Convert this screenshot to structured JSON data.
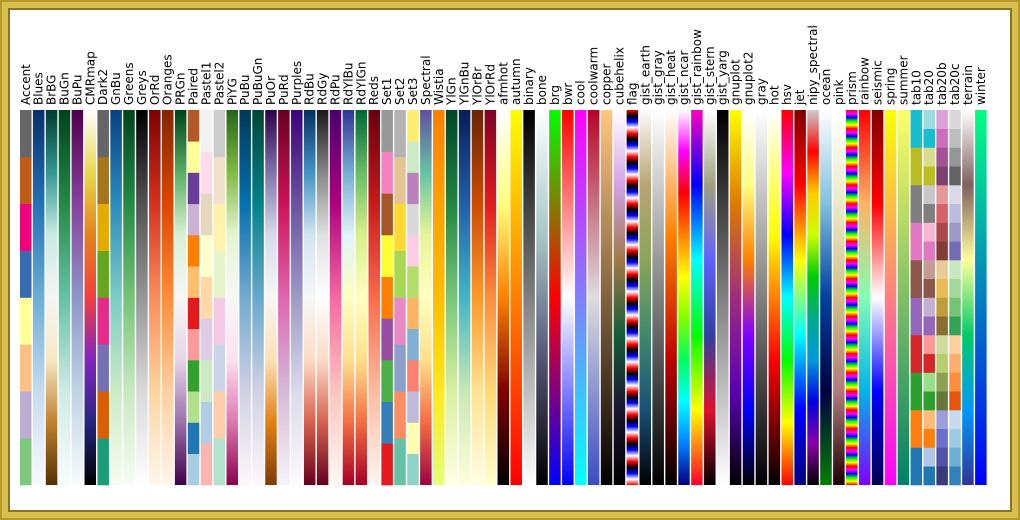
{
  "colormaps": [
    {
      "name": "Accent",
      "discrete": true,
      "colors": [
        "#7fc97f",
        "#beaed4",
        "#fdc086",
        "#ffff99",
        "#386cb0",
        "#f0027f",
        "#bf5b17",
        "#666666"
      ]
    },
    {
      "name": "Blues",
      "colors": [
        "#f7fbff",
        "#c6dbef",
        "#6baed6",
        "#2171b5",
        "#08306b"
      ]
    },
    {
      "name": "BrBG",
      "colors": [
        "#543005",
        "#bf812d",
        "#f6e8c3",
        "#f5f5f5",
        "#c7eae5",
        "#35978f",
        "#003c30"
      ]
    },
    {
      "name": "BuGn",
      "colors": [
        "#f7fcfd",
        "#ccece6",
        "#66c2a4",
        "#238b45",
        "#00441b"
      ]
    },
    {
      "name": "BuPu",
      "colors": [
        "#f7fcfd",
        "#bfd3e6",
        "#8c96c6",
        "#88419d",
        "#4d004b"
      ]
    },
    {
      "name": "CMRmap",
      "colors": [
        "#000000",
        "#262680",
        "#7f26bf",
        "#f23f40",
        "#e6801a",
        "#e6d94d",
        "#ffffff"
      ]
    },
    {
      "name": "Dark2",
      "discrete": true,
      "colors": [
        "#1b9e77",
        "#d95f02",
        "#7570b3",
        "#e7298a",
        "#66a61e",
        "#e6ab02",
        "#a6761d",
        "#666666"
      ]
    },
    {
      "name": "GnBu",
      "colors": [
        "#f7fcf0",
        "#ccebc5",
        "#7bccc4",
        "#2b8cbe",
        "#084081"
      ]
    },
    {
      "name": "Greens",
      "colors": [
        "#f7fcf5",
        "#c7e9c0",
        "#74c476",
        "#238b45",
        "#00441b"
      ]
    },
    {
      "name": "Greys",
      "colors": [
        "#ffffff",
        "#d9d9d9",
        "#969696",
        "#525252",
        "#000000"
      ]
    },
    {
      "name": "OrRd",
      "colors": [
        "#fff7ec",
        "#fdd49e",
        "#fc8d59",
        "#d7301f",
        "#7f0000"
      ]
    },
    {
      "name": "Oranges",
      "colors": [
        "#fff5eb",
        "#fdd0a2",
        "#fd8d3c",
        "#d94801",
        "#7f2704"
      ]
    },
    {
      "name": "PRGn",
      "colors": [
        "#40004b",
        "#9970ab",
        "#e7d4e8",
        "#f7f7f7",
        "#d9f0d3",
        "#5aae61",
        "#00441b"
      ]
    },
    {
      "name": "Paired",
      "discrete": true,
      "colors": [
        "#a6cee3",
        "#1f78b4",
        "#b2df8a",
        "#33a02c",
        "#fb9a99",
        "#e31a1c",
        "#fdbf6f",
        "#ff7f00",
        "#cab2d6",
        "#6a3d9a",
        "#ffff99",
        "#b15928"
      ]
    },
    {
      "name": "Pastel1",
      "discrete": true,
      "colors": [
        "#fbb4ae",
        "#b3cde3",
        "#ccebc5",
        "#decbe4",
        "#fed9a6",
        "#ffffcc",
        "#e5d8bd",
        "#fddaec",
        "#f2f2f2"
      ]
    },
    {
      "name": "Pastel2",
      "discrete": true,
      "colors": [
        "#b3e2cd",
        "#fdcdac",
        "#cbd5e8",
        "#f4cae4",
        "#e6f5c9",
        "#fff2ae",
        "#f1e2cc",
        "#cccccc"
      ]
    },
    {
      "name": "PiYG",
      "colors": [
        "#8e0152",
        "#de77ae",
        "#fde0ef",
        "#f7f7f7",
        "#e6f5d0",
        "#7fbc41",
        "#276419"
      ]
    },
    {
      "name": "PuBu",
      "colors": [
        "#fff7fb",
        "#d0d1e6",
        "#74a9cf",
        "#0570b0",
        "#023858"
      ]
    },
    {
      "name": "PuBuGn",
      "colors": [
        "#fff7fb",
        "#d0d1e6",
        "#67a9cf",
        "#02818a",
        "#014636"
      ]
    },
    {
      "name": "PuOr",
      "colors": [
        "#7f3b08",
        "#e08214",
        "#fee0b6",
        "#f7f7f7",
        "#d8daeb",
        "#8073ac",
        "#2d004b"
      ]
    },
    {
      "name": "PuRd",
      "colors": [
        "#f7f4f9",
        "#d4b9da",
        "#df65b0",
        "#ce1256",
        "#67001f"
      ]
    },
    {
      "name": "Purples",
      "colors": [
        "#fcfbfd",
        "#dadaeb",
        "#9e9ac8",
        "#6a51a3",
        "#3f007d"
      ]
    },
    {
      "name": "RdBu",
      "colors": [
        "#67001f",
        "#d6604d",
        "#fddbc7",
        "#f7f7f7",
        "#d1e5f0",
        "#4393c3",
        "#053061"
      ]
    },
    {
      "name": "RdGy",
      "colors": [
        "#67001f",
        "#d6604d",
        "#fddbc7",
        "#ffffff",
        "#e0e0e0",
        "#878787",
        "#1a1a1a"
      ]
    },
    {
      "name": "RdPu",
      "colors": [
        "#fff7f3",
        "#fcc5c0",
        "#f768a1",
        "#ae017e",
        "#49006a"
      ]
    },
    {
      "name": "RdYlBu",
      "colors": [
        "#a50026",
        "#f46d43",
        "#fee090",
        "#ffffbf",
        "#e0f3f8",
        "#74add1",
        "#313695"
      ]
    },
    {
      "name": "RdYlGn",
      "colors": [
        "#a50026",
        "#f46d43",
        "#fee08b",
        "#ffffbf",
        "#d9ef8b",
        "#66bd63",
        "#006837"
      ]
    },
    {
      "name": "Reds",
      "colors": [
        "#fff5f0",
        "#fcbba1",
        "#fb6a4a",
        "#cb181d",
        "#67000d"
      ]
    },
    {
      "name": "Set1",
      "discrete": true,
      "colors": [
        "#e41a1c",
        "#377eb8",
        "#4daf4a",
        "#984ea3",
        "#ff7f00",
        "#ffff33",
        "#a65628",
        "#f781bf",
        "#999999"
      ]
    },
    {
      "name": "Set2",
      "discrete": true,
      "colors": [
        "#66c2a5",
        "#fc8d62",
        "#8da0cb",
        "#e78ac3",
        "#a6d854",
        "#ffd92f",
        "#e5c494",
        "#b3b3b3"
      ]
    },
    {
      "name": "Set3",
      "discrete": true,
      "colors": [
        "#8dd3c7",
        "#ffffb3",
        "#bebada",
        "#fb8072",
        "#80b1d3",
        "#fdb462",
        "#b3de69",
        "#fccde5",
        "#d9d9d9",
        "#bc80bd",
        "#ccebc5",
        "#ffed6f"
      ]
    },
    {
      "name": "Spectral",
      "colors": [
        "#9e0142",
        "#f46d43",
        "#fee08b",
        "#ffffbf",
        "#e6f598",
        "#66c2a5",
        "#5e4fa2"
      ]
    },
    {
      "name": "Wistia",
      "colors": [
        "#e4ff7a",
        "#ffe81a",
        "#ffbd00",
        "#ffa000",
        "#fc7f00"
      ]
    },
    {
      "name": "YlGn",
      "colors": [
        "#ffffe5",
        "#d9f0a3",
        "#78c679",
        "#238443",
        "#004529"
      ]
    },
    {
      "name": "YlGnBu",
      "colors": [
        "#ffffd9",
        "#c7e9b4",
        "#41b6c4",
        "#225ea8",
        "#081d58"
      ]
    },
    {
      "name": "YlOrBr",
      "colors": [
        "#ffffe5",
        "#fee391",
        "#fe9929",
        "#cc4c02",
        "#662506"
      ]
    },
    {
      "name": "YlOrRd",
      "colors": [
        "#ffffcc",
        "#fed976",
        "#fd8d3c",
        "#e31a1c",
        "#800026"
      ]
    },
    {
      "name": "afmhot",
      "colors": [
        "#000000",
        "#800000",
        "#ff8000",
        "#ffff80",
        "#ffffff"
      ]
    },
    {
      "name": "autumn",
      "colors": [
        "#ff0000",
        "#ffff00"
      ]
    },
    {
      "name": "binary",
      "colors": [
        "#ffffff",
        "#000000"
      ]
    },
    {
      "name": "bone",
      "colors": [
        "#000000",
        "#545474",
        "#a7c7c7",
        "#ffffff"
      ]
    },
    {
      "name": "brg",
      "colors": [
        "#0000ff",
        "#ff0000",
        "#00ff00"
      ]
    },
    {
      "name": "bwr",
      "colors": [
        "#0000ff",
        "#ffffff",
        "#ff0000"
      ]
    },
    {
      "name": "cool",
      "colors": [
        "#00ffff",
        "#ff00ff"
      ]
    },
    {
      "name": "coolwarm",
      "colors": [
        "#3b4cc0",
        "#dddddd",
        "#b40426"
      ]
    },
    {
      "name": "copper",
      "colors": [
        "#000000",
        "#ffc77f"
      ]
    },
    {
      "name": "cubehelix",
      "colors": [
        "#000000",
        "#1a1530",
        "#155d3a",
        "#a07949",
        "#d0a3e4",
        "#ffffff"
      ]
    },
    {
      "name": "flag",
      "repeat": 16,
      "colors": [
        "#ff0000",
        "#ffffff",
        "#0000ff",
        "#000000",
        "#ff0000"
      ]
    },
    {
      "name": "gist_earth",
      "colors": [
        "#000000",
        "#1a5078",
        "#3e8a6a",
        "#8aa55a",
        "#b9a473",
        "#fdfbfb"
      ]
    },
    {
      "name": "gist_gray",
      "colors": [
        "#000000",
        "#ffffff"
      ]
    },
    {
      "name": "gist_heat",
      "colors": [
        "#000000",
        "#c00000",
        "#ff8000",
        "#ffffff"
      ]
    },
    {
      "name": "gist_ncar",
      "colors": [
        "#000080",
        "#0080ff",
        "#00ffff",
        "#00ff60",
        "#80ff00",
        "#ffff00",
        "#ff8000",
        "#ff0000",
        "#ff00ff",
        "#ffffff"
      ]
    },
    {
      "name": "gist_rainbow",
      "colors": [
        "#ff0028",
        "#ffff00",
        "#00ff00",
        "#00ffff",
        "#0000ff",
        "#ff00bf"
      ]
    },
    {
      "name": "gist_stern",
      "colors": [
        "#000000",
        "#e01030",
        "#3040a0",
        "#6060ff",
        "#a0a080",
        "#ffffff"
      ]
    },
    {
      "name": "gist_yarg",
      "colors": [
        "#ffffff",
        "#000000"
      ]
    },
    {
      "name": "gnuplot",
      "colors": [
        "#000000",
        "#5a00b4",
        "#9f2d7d",
        "#dd7a00",
        "#ffff00"
      ]
    },
    {
      "name": "gnuplot2",
      "colors": [
        "#000000",
        "#0000ff",
        "#8000ff",
        "#ff8000",
        "#ffff80",
        "#ffffff"
      ]
    },
    {
      "name": "gray",
      "colors": [
        "#000000",
        "#ffffff"
      ]
    },
    {
      "name": "hot",
      "colors": [
        "#000000",
        "#ff0000",
        "#ffff00",
        "#ffffff"
      ]
    },
    {
      "name": "hsv",
      "colors": [
        "#ff0000",
        "#ffff00",
        "#00ff00",
        "#00ffff",
        "#0000ff",
        "#ff00ff",
        "#ff0000"
      ]
    },
    {
      "name": "jet",
      "colors": [
        "#000080",
        "#0000ff",
        "#00ffff",
        "#ffff00",
        "#ff0000",
        "#800000"
      ]
    },
    {
      "name": "nipy_spectral",
      "colors": [
        "#000000",
        "#8800aa",
        "#0000dd",
        "#0099dd",
        "#00aa88",
        "#00cc00",
        "#ccff00",
        "#ffcc00",
        "#ff0000",
        "#cccccc"
      ]
    },
    {
      "name": "ocean",
      "colors": [
        "#007f00",
        "#000040",
        "#0040a0",
        "#80c0e0",
        "#ffffff"
      ]
    },
    {
      "name": "pink",
      "colors": [
        "#1e0000",
        "#b07a7a",
        "#d2c08c",
        "#eaeac8",
        "#ffffff"
      ]
    },
    {
      "name": "prism",
      "repeat": 20,
      "colors": [
        "#ff0000",
        "#ffff00",
        "#00ff00",
        "#0000ff",
        "#ff00ff",
        "#ff0000"
      ]
    },
    {
      "name": "rainbow",
      "colors": [
        "#8000ff",
        "#00b5eb",
        "#80ffb4",
        "#ffb462",
        "#ff0000"
      ]
    },
    {
      "name": "seismic",
      "colors": [
        "#00004c",
        "#0000ff",
        "#ffffff",
        "#ff0000",
        "#800000"
      ]
    },
    {
      "name": "spring",
      "colors": [
        "#ff00ff",
        "#ffff00"
      ]
    },
    {
      "name": "summer",
      "colors": [
        "#008066",
        "#ffff66"
      ]
    },
    {
      "name": "tab10",
      "discrete": true,
      "colors": [
        "#1f77b4",
        "#ff7f0e",
        "#2ca02c",
        "#d62728",
        "#9467bd",
        "#8c564b",
        "#e377c2",
        "#7f7f7f",
        "#bcbd22",
        "#17becf"
      ]
    },
    {
      "name": "tab20",
      "discrete": true,
      "colors": [
        "#1f77b4",
        "#aec7e8",
        "#ff7f0e",
        "#ffbb78",
        "#2ca02c",
        "#98df8a",
        "#d62728",
        "#ff9896",
        "#9467bd",
        "#c5b0d5",
        "#8c564b",
        "#c49c94",
        "#e377c2",
        "#f7b6d2",
        "#7f7f7f",
        "#c7c7c7",
        "#bcbd22",
        "#dbdb8d",
        "#17becf",
        "#9edae5"
      ]
    },
    {
      "name": "tab20b",
      "discrete": true,
      "colors": [
        "#393b79",
        "#5254a3",
        "#6b6ecf",
        "#9c9ede",
        "#637939",
        "#8ca252",
        "#b5cf6b",
        "#cedb9c",
        "#8c6d31",
        "#bd9e39",
        "#e7ba52",
        "#e7cb94",
        "#843c39",
        "#ad494a",
        "#d6616b",
        "#e7969c",
        "#7b4173",
        "#a55194",
        "#ce6dbd",
        "#de9ed6"
      ]
    },
    {
      "name": "tab20c",
      "discrete": true,
      "colors": [
        "#3182bd",
        "#6baed6",
        "#9ecae1",
        "#c6dbef",
        "#e6550d",
        "#fd8d3c",
        "#fdae6b",
        "#fdd0a2",
        "#31a354",
        "#74c476",
        "#a1d99b",
        "#c7e9c0",
        "#756bb1",
        "#9e9ac8",
        "#bcbddc",
        "#dadaeb",
        "#636363",
        "#969696",
        "#bdbdbd",
        "#d9d9d9"
      ]
    },
    {
      "name": "terrain",
      "colors": [
        "#333399",
        "#0099ff",
        "#00cc66",
        "#ffff99",
        "#806060",
        "#ffffff"
      ]
    },
    {
      "name": "winter",
      "colors": [
        "#0000ff",
        "#00ff80"
      ]
    }
  ]
}
